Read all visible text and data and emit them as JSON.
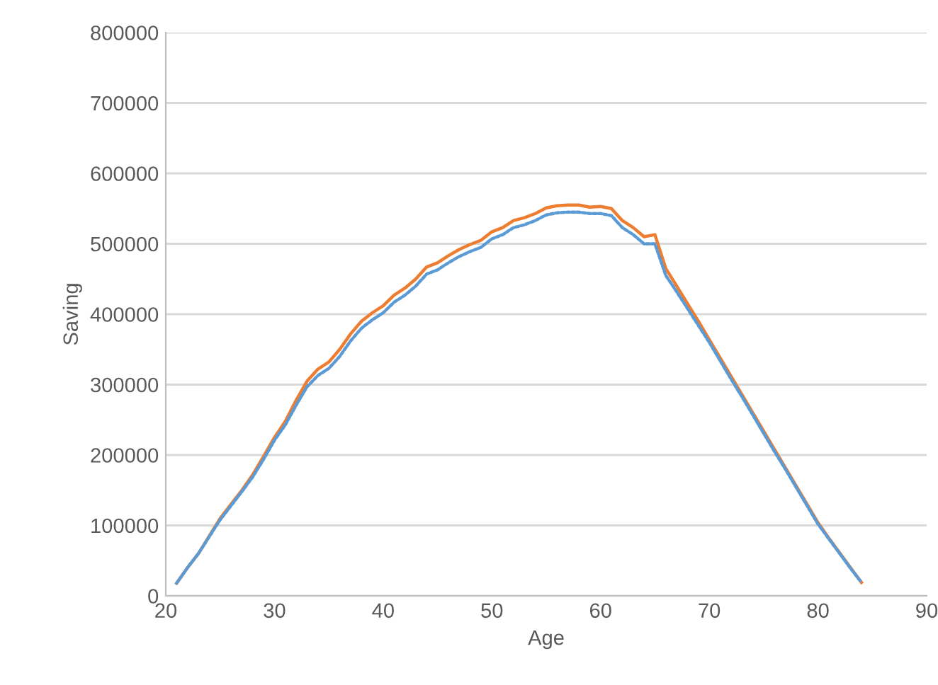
{
  "chart_data": {
    "type": "line",
    "xlabel": "Age",
    "ylabel": "Saving",
    "xlim": [
      20,
      90
    ],
    "xticks": [
      20,
      30,
      40,
      50,
      60,
      70,
      80,
      90
    ],
    "ylim": [
      0,
      800000
    ],
    "yticks": [
      0,
      100000,
      200000,
      300000,
      400000,
      500000,
      600000,
      700000,
      800000
    ],
    "grid": "y",
    "legend": false,
    "x": [
      21,
      22,
      23,
      24,
      25,
      26,
      27,
      28,
      29,
      30,
      31,
      32,
      33,
      34,
      35,
      36,
      37,
      38,
      39,
      40,
      41,
      42,
      43,
      44,
      45,
      46,
      47,
      48,
      49,
      50,
      51,
      52,
      53,
      54,
      55,
      56,
      57,
      58,
      59,
      60,
      61,
      62,
      63,
      64,
      65,
      66,
      67,
      68,
      69,
      70,
      71,
      72,
      73,
      74,
      75,
      76,
      77,
      78,
      79,
      80,
      81,
      82,
      83,
      84
    ],
    "series": [
      {
        "color": "#5b9bd5",
        "line_style": "dotted",
        "values": [
          18000,
          40000,
          60000,
          84000,
          108000,
          128000,
          148000,
          169000,
          194000,
          221000,
          243000,
          271000,
          297000,
          313000,
          323000,
          340000,
          362000,
          380000,
          392000,
          402000,
          417000,
          427000,
          440000,
          457000,
          463000,
          473000,
          482000,
          489000,
          495000,
          507000,
          513000,
          523000,
          527000,
          533000,
          541000,
          544000,
          545000,
          545000,
          543000,
          543000,
          540000,
          523000,
          513000,
          500000,
          500000,
          455000,
          432000,
          408000,
          384000,
          360000,
          334000,
          308000,
          283000,
          257000,
          231000,
          205000,
          180000,
          154000,
          128000,
          102000,
          81000,
          60000,
          39000,
          19000
        ]
      },
      {
        "color": "#ed7d31",
        "line_style": "solid",
        "values": [
          18000,
          40000,
          60000,
          85000,
          110000,
          130000,
          150000,
          172000,
          198000,
          225000,
          248000,
          278000,
          305000,
          322000,
          332000,
          350000,
          372000,
          390000,
          402000,
          412000,
          427000,
          437000,
          450000,
          467000,
          473000,
          483000,
          492000,
          499000,
          505000,
          517000,
          523000,
          533000,
          537000,
          543000,
          551000,
          554000,
          555000,
          555000,
          552000,
          553000,
          550000,
          533000,
          523000,
          510000,
          513000,
          465000,
          440000,
          415000,
          390000,
          364000,
          338000,
          312000,
          286000,
          260000,
          234000,
          208000,
          182000,
          156000,
          130000,
          104000,
          82000,
          61000,
          40000,
          19000
        ]
      }
    ]
  }
}
